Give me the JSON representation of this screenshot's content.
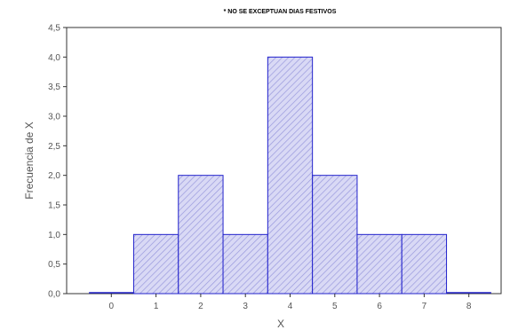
{
  "chart_data": {
    "type": "bar",
    "title": "",
    "subtitle": "* NO SE EXCEPTUAN DIAS FESTIVOS",
    "xlabel": "X",
    "ylabel": "Frecuencia de X",
    "categories": [
      "0",
      "1",
      "2",
      "3",
      "4",
      "5",
      "6",
      "7",
      "8"
    ],
    "values": [
      0,
      1,
      2,
      1,
      4,
      2,
      1,
      1,
      0
    ],
    "yticks": [
      "0,0",
      "0,5",
      "1,0",
      "1,5",
      "2,0",
      "2,5",
      "3,0",
      "3,5",
      "4,0",
      "4,5"
    ],
    "ylim": [
      0,
      4.5
    ],
    "grid": false,
    "legend": "none",
    "colors": {
      "bar_fill": "#d9d9f5",
      "bar_hatch": "#9999dd",
      "bar_edge": "#2222cc",
      "axis": "#333333"
    }
  }
}
